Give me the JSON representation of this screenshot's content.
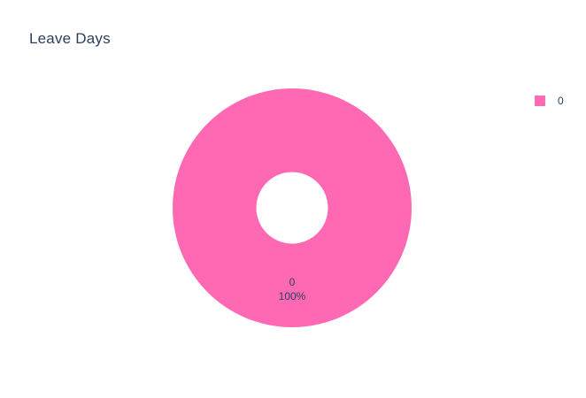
{
  "chart_data": {
    "type": "pie",
    "title": "Leave Days",
    "hole": 0.3,
    "labels": [
      "0"
    ],
    "values": [
      1
    ],
    "percent_labels": [
      "100%"
    ],
    "colors": [
      "#ff69b4"
    ],
    "legend": {
      "position": "top-right",
      "entries": [
        "0"
      ]
    }
  }
}
